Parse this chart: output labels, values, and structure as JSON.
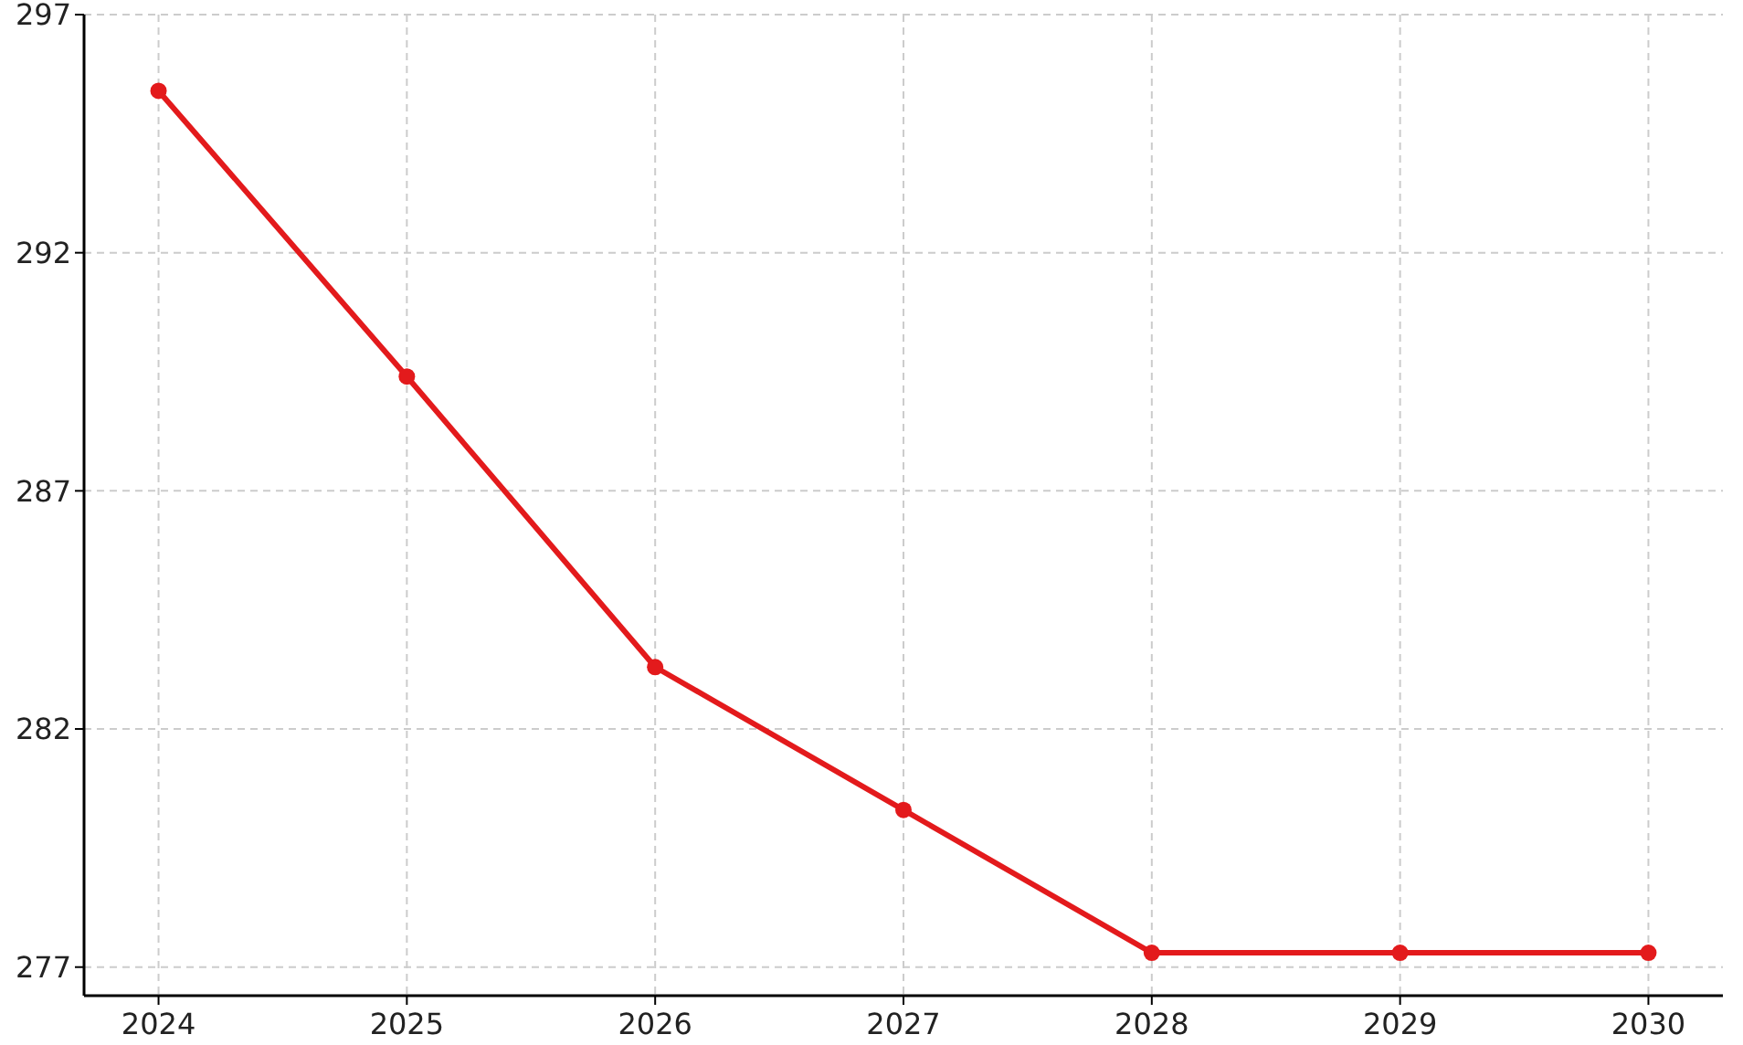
{
  "chart_data": {
    "type": "line",
    "x": [
      2024,
      2025,
      2026,
      2027,
      2028,
      2029,
      2030
    ],
    "series": [
      {
        "color": "#e31a1c",
        "values": [
          295.4,
          289.4,
          283.3,
          280.3,
          277.3,
          277.3,
          277.3
        ]
      }
    ],
    "xlim": [
      2023.7,
      2030.3
    ],
    "xticks": [
      2024,
      2025,
      2026,
      2027,
      2028,
      2029,
      2030
    ],
    "ylim": [
      276.4,
      297
    ],
    "yticks": [
      277,
      282,
      287,
      292,
      297
    ],
    "grid": true,
    "marker": "circle",
    "line_style": "solid"
  }
}
